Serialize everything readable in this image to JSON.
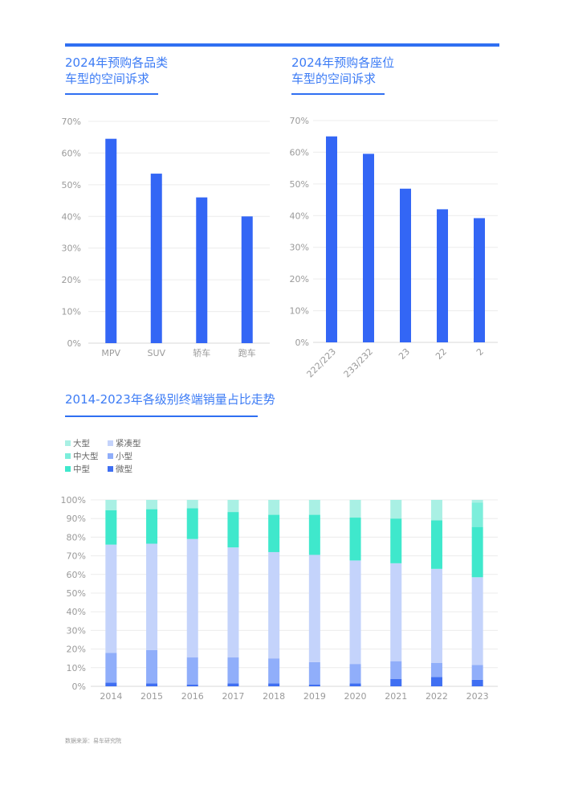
{
  "colors": {
    "accent": "#2f6ff2",
    "bar": "#3366f5",
    "grid": "#ececec",
    "large": "#a9f0e4",
    "mid_large": "#7ceedb",
    "mid": "#3fe8cc",
    "compact": "#c4d3fb",
    "small": "#90aefa",
    "micro": "#3f6ff2"
  },
  "titles": {
    "chart1": "2024年预购各品类\n车型的空间诉求",
    "chart2": "2024年预购各座位\n车型的空间诉求",
    "chart3": "2014-2023年各级别终端销量占比走势"
  },
  "source": "数据来源：易车研究院",
  "chart_data": [
    {
      "type": "bar",
      "title": "2024年预购各品类车型的空间诉求",
      "categories": [
        "MPV",
        "SUV",
        "轿车",
        "跑车"
      ],
      "values": [
        64.5,
        53.5,
        46,
        40
      ],
      "ylim": [
        0,
        70
      ],
      "yticks": [
        "0%",
        "10%",
        "20%",
        "30%",
        "40%",
        "50%",
        "60%",
        "70%"
      ],
      "grid": true
    },
    {
      "type": "bar",
      "title": "2024年预购各座位车型的空间诉求",
      "categories": [
        "222/223",
        "233/232",
        "23",
        "22",
        "2"
      ],
      "values": [
        65,
        59.5,
        48.5,
        42,
        39.2
      ],
      "ylim": [
        0,
        70
      ],
      "yticks": [
        "0%",
        "10%",
        "20%",
        "30%",
        "40%",
        "50%",
        "60%",
        "70%"
      ],
      "grid": true
    },
    {
      "type": "bar",
      "stacked": true,
      "title": "2014-2023年各级别终端销量占比走势",
      "categories": [
        "2014",
        "2015",
        "2016",
        "2017",
        "2018",
        "2019",
        "2020",
        "2021",
        "2022",
        "2023"
      ],
      "ylim": [
        0,
        100
      ],
      "yticks": [
        "0%",
        "10%",
        "20%",
        "30%",
        "40%",
        "50%",
        "60%",
        "70%",
        "80%",
        "90%",
        "100%"
      ],
      "legend": [
        "大型",
        "紧凑型",
        "中大型",
        "小型",
        "中型",
        "微型"
      ],
      "series": [
        {
          "name": "微型",
          "values": [
            2,
            1.5,
            1,
            1.5,
            1.5,
            1,
            1.5,
            4,
            5,
            3.5
          ]
        },
        {
          "name": "小型",
          "values": [
            16,
            18,
            14.5,
            14,
            13.5,
            12,
            10.5,
            9.5,
            7.5,
            8
          ]
        },
        {
          "name": "紧凑型",
          "values": [
            58,
            57,
            63.5,
            59,
            57,
            57.5,
            55.5,
            52.5,
            50.5,
            47
          ]
        },
        {
          "name": "中型",
          "values": [
            18.5,
            18.5,
            16.5,
            19,
            20,
            21.5,
            23,
            24,
            26,
            27
          ]
        },
        {
          "name": "中大型",
          "values": [
            0,
            0,
            0,
            0,
            0,
            0,
            0,
            0,
            0,
            13
          ]
        },
        {
          "name": "大型",
          "values": [
            5.5,
            5,
            4.5,
            6.5,
            8,
            8,
            9.5,
            10,
            11,
            1.5
          ]
        }
      ],
      "grid": true
    }
  ]
}
